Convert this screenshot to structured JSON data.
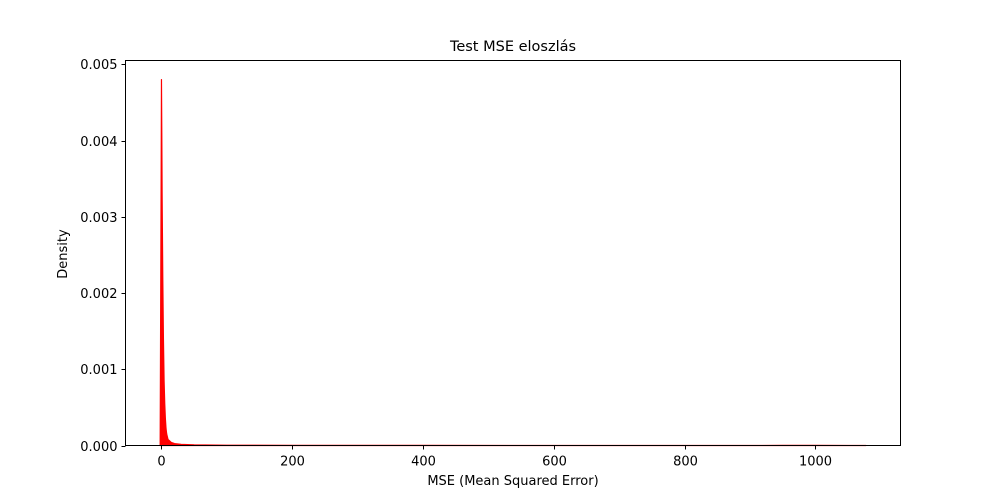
{
  "chart_data": {
    "type": "area",
    "title": "Test MSE eloszlás",
    "xlabel": "MSE (Mean Squared Error)",
    "ylabel": "Density",
    "xlim": [
      -55,
      1130
    ],
    "ylim": [
      0,
      0.00505
    ],
    "xticks": [
      0,
      200,
      400,
      600,
      800,
      1000
    ],
    "xtick_labels": [
      "0",
      "200",
      "400",
      "600",
      "800",
      "1000"
    ],
    "yticks": [
      0,
      0.001,
      0.002,
      0.003,
      0.004,
      0.005
    ],
    "ytick_labels": [
      "0.000",
      "0.001",
      "0.002",
      "0.003",
      "0.004",
      "0.005"
    ],
    "grid": false,
    "series": [
      {
        "color": "#ff0000",
        "fill": true,
        "x": [
          -2,
          -0.5,
          0,
          0.5,
          1,
          2,
          3,
          4,
          5,
          6,
          7,
          8,
          10,
          15,
          20,
          30,
          50,
          100,
          200,
          400,
          600,
          800,
          950,
          1000,
          1050,
          1077
        ],
        "y": [
          0,
          0.0035,
          0.0048,
          0.0041,
          0.0033,
          0.0022,
          0.0014,
          0.00085,
          0.00055,
          0.00035,
          0.00022,
          0.00015,
          8e-05,
          4e-05,
          2.5e-05,
          1.5e-05,
          8e-06,
          4e-06,
          2e-06,
          1.2e-06,
          8e-07,
          6e-07,
          1.2e-06,
          1.5e-06,
          6e-07,
          0
        ]
      }
    ]
  }
}
